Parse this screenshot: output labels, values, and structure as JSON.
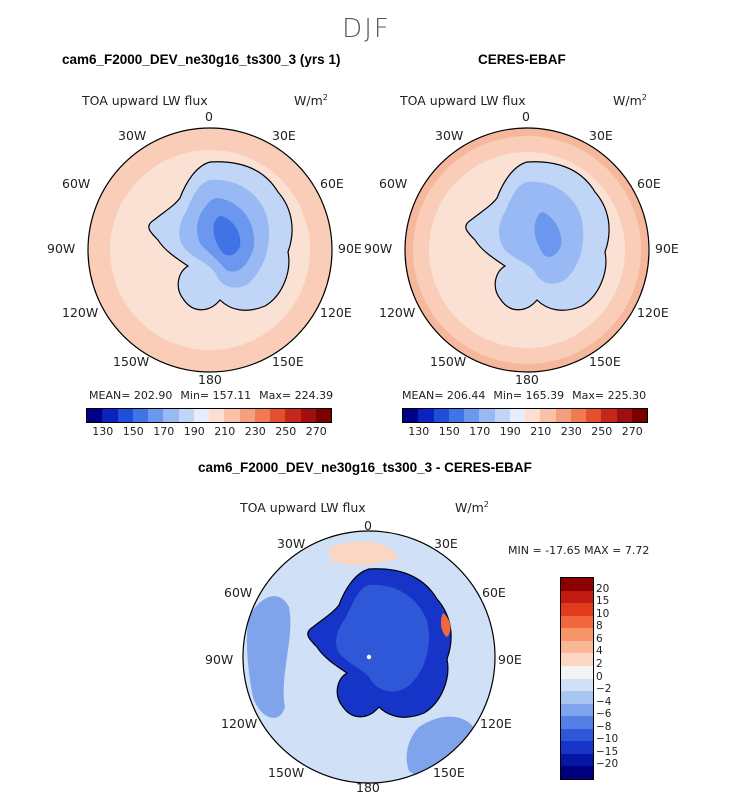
{
  "season": "DJF",
  "panels": [
    {
      "title": "cam6_F2000_DEV_ne30g16_ts300_3 (yrs 1)",
      "variable": "TOA upward LW flux",
      "units_base": "W/m",
      "units_exp": "2",
      "stats": {
        "mean_label": "MEAN= 202.90",
        "min_label": "Min= 157.11",
        "max_label": "Max= 224.39"
      },
      "colorbar_ticks": [
        "130",
        "150",
        "170",
        "190",
        "210",
        "230",
        "250",
        "270"
      ]
    },
    {
      "title": "CERES-EBAF",
      "variable": "TOA upward LW flux",
      "units_base": "W/m",
      "units_exp": "2",
      "stats": {
        "mean_label": "MEAN= 206.44",
        "min_label": "Min= 165.39",
        "max_label": "Max= 225.30"
      },
      "colorbar_ticks": [
        "130",
        "150",
        "170",
        "190",
        "210",
        "230",
        "250",
        "270"
      ]
    },
    {
      "title": "cam6_F2000_DEV_ne30g16_ts300_3 - CERES-EBAF",
      "variable": "TOA upward LW flux",
      "units_base": "W/m",
      "units_exp": "2",
      "minmax_label": "MIN = -17.65 MAX =    7.72",
      "colorbar_ticks": [
        "20",
        "15",
        "10",
        "8",
        "6",
        "4",
        "2",
        "0",
        "−2",
        "−4",
        "−6",
        "−8",
        "−10",
        "−15",
        "−20"
      ]
    }
  ],
  "longitude_labels": {
    "lon_0": "0",
    "lon_30e": "30E",
    "lon_60e": "60E",
    "lon_90e": "90E",
    "lon_120e": "120E",
    "lon_150e": "150E",
    "lon_180": "180",
    "lon_150w": "150W",
    "lon_120w": "120W",
    "lon_90w": "90W",
    "lon_60w": "60W",
    "lon_30w": "30W"
  },
  "colors": {
    "seq_palette": [
      "#000085",
      "#0a22c0",
      "#1f4fd8",
      "#3f73e6",
      "#6b97ee",
      "#98b9f3",
      "#c1d6f7",
      "#e5eefa",
      "#fbdfd1",
      "#f8c1a8",
      "#f4a07f",
      "#ef7a53",
      "#e4502d",
      "#c7271a",
      "#a00f0f",
      "#7a0000"
    ],
    "diff_palette": [
      "#8b0000",
      "#c11a0e",
      "#e23a1c",
      "#f2683e",
      "#f6946a",
      "#f8b896",
      "#fbd7c3",
      "#f4f4f4",
      "#cfe0f7",
      "#a9c5f2",
      "#7fa4ec",
      "#557fe4",
      "#2f58d8",
      "#1635c8",
      "#0515a4",
      "#00007e"
    ],
    "land_low": "#1c44d6",
    "land_mid": "#4f7fe8",
    "ring_light": "#fbe1d4",
    "ocean_base": "#f9cdb8",
    "outer_ring": "#f6b89c"
  },
  "chart_data": [
    {
      "type": "heatmap",
      "title": "cam6_F2000_DEV_ne30g16_ts300_3 (yrs 1)",
      "variable": "TOA upward LW flux",
      "units": "W/m^2",
      "projection": "south polar stereographic",
      "season": "DJF",
      "mean": 202.9,
      "min": 157.11,
      "max": 224.39,
      "levels": [
        130,
        140,
        150,
        160,
        170,
        180,
        190,
        200,
        210,
        220,
        230,
        240,
        250,
        260,
        270
      ],
      "colorbar_labels": [
        130,
        150,
        170,
        190,
        210,
        230,
        250,
        270
      ]
    },
    {
      "type": "heatmap",
      "title": "CERES-EBAF",
      "variable": "TOA upward LW flux",
      "units": "W/m^2",
      "projection": "south polar stereographic",
      "season": "DJF",
      "mean": 206.44,
      "min": 165.39,
      "max": 225.3,
      "levels": [
        130,
        140,
        150,
        160,
        170,
        180,
        190,
        200,
        210,
        220,
        230,
        240,
        250,
        260,
        270
      ],
      "colorbar_labels": [
        130,
        150,
        170,
        190,
        210,
        230,
        250,
        270
      ]
    },
    {
      "type": "heatmap",
      "title": "cam6_F2000_DEV_ne30g16_ts300_3 - CERES-EBAF",
      "variable": "TOA upward LW flux",
      "units": "W/m^2",
      "projection": "south polar stereographic",
      "season": "DJF",
      "min": -17.65,
      "max": 7.72,
      "levels": [
        -20,
        -15,
        -10,
        -8,
        -6,
        -4,
        -2,
        0,
        2,
        4,
        6,
        8,
        10,
        15,
        20
      ]
    }
  ]
}
